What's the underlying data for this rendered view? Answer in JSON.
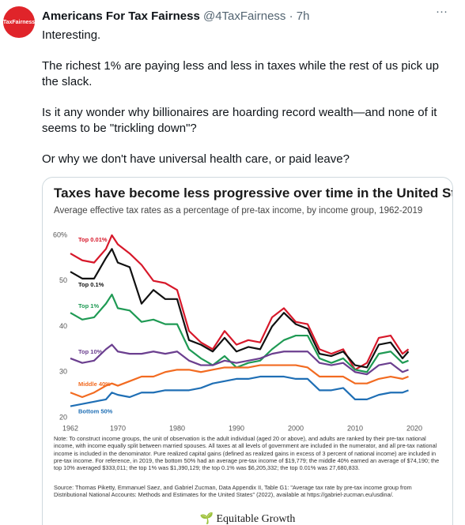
{
  "tweet": {
    "avatar_text": "TaxFairness",
    "name": "Americans For Tax Fairness",
    "handle": "@4TaxFairness",
    "separator": "·",
    "time": "7h",
    "more": "···",
    "paragraphs": [
      "Interesting.",
      "The richest 1% are paying less and less in taxes while the rest of us pick up the slack.",
      "Is it any wonder why billionaires are hoarding record wealth—and none of it seems to be \"trickling down\"?",
      "Or why we don't have universal health care, or paid leave?"
    ],
    "logo": "Equitable Growth"
  },
  "chart_data": {
    "type": "line",
    "title": "Taxes have become less progressive over time in the United States",
    "subtitle": "Average effective tax rates as a percentage of pre-tax income, by income group, 1962-2019",
    "x": [
      1962,
      1964,
      1966,
      1968,
      1969,
      1970,
      1972,
      1974,
      1976,
      1978,
      1980,
      1982,
      1984,
      1986,
      1988,
      1990,
      1992,
      1994,
      1996,
      1998,
      2000,
      2002,
      2004,
      2006,
      2008,
      2010,
      2012,
      2014,
      2016,
      2018,
      2019
    ],
    "series": [
      {
        "name": "Top 0.01%",
        "color": "#d7182a",
        "values": [
          56,
          54.5,
          54,
          57,
          60,
          58,
          56,
          53.5,
          50,
          49.5,
          48,
          39,
          36.5,
          35,
          39,
          36,
          37,
          36.5,
          42,
          44,
          41,
          40.5,
          35,
          34,
          35,
          30.5,
          32,
          37.5,
          38,
          34,
          35
        ]
      },
      {
        "name": "Top 0.1%",
        "color": "#111111",
        "values": [
          52,
          50.5,
          50.5,
          55,
          57,
          54,
          53,
          45,
          48,
          46,
          46,
          37,
          36,
          34.5,
          37.5,
          34.5,
          35.5,
          35,
          40,
          43,
          40.5,
          39.5,
          34,
          33.5,
          34.5,
          31.5,
          31,
          36,
          36.5,
          33,
          34.5
        ]
      },
      {
        "name": "Top 1%",
        "color": "#1f9a54",
        "values": [
          43,
          41.5,
          42,
          45,
          47,
          44,
          43.5,
          41,
          41.5,
          40.5,
          40.5,
          35,
          33,
          31.5,
          33.5,
          31,
          32,
          32.5,
          35,
          37,
          38,
          38,
          33,
          32,
          33,
          30.5,
          30,
          34,
          34.5,
          32,
          32.5
        ]
      },
      {
        "name": "Top 10%",
        "color": "#6b3f8f",
        "values": [
          33,
          32,
          32.5,
          35,
          36,
          34.5,
          34,
          34,
          34.5,
          34,
          34.5,
          32.5,
          31.5,
          31.5,
          32.5,
          32,
          32.5,
          33,
          34,
          34.5,
          34.5,
          34.5,
          32,
          31.5,
          32,
          30,
          29.5,
          31.5,
          32,
          30,
          30.5
        ]
      },
      {
        "name": "Middle 40%",
        "color": "#f26b21",
        "values": [
          25.5,
          24.5,
          25.5,
          27,
          27.5,
          27,
          28,
          29,
          29,
          30,
          30.5,
          30.5,
          30,
          30.5,
          31,
          31,
          31,
          31.5,
          31.5,
          31.5,
          31.5,
          31,
          29,
          29,
          29,
          27.5,
          27.5,
          28.5,
          29,
          28.5,
          29
        ]
      },
      {
        "name": "Bottom 50%",
        "color": "#1f6fb5",
        "values": [
          22.5,
          23,
          23.5,
          24,
          25.5,
          25,
          24.5,
          25.5,
          25.5,
          26,
          26,
          26,
          26.5,
          27.5,
          28,
          28.5,
          28.5,
          29,
          29,
          29,
          28.5,
          28.5,
          26,
          26,
          26.5,
          24,
          24,
          25,
          25.5,
          25.5,
          26
        ]
      }
    ],
    "xlim": [
      1962,
      2020
    ],
    "xticks": [
      1962,
      1970,
      1980,
      1990,
      2000,
      2010,
      2020
    ],
    "ylim": [
      20,
      61
    ],
    "yticks": [
      {
        "value": 60,
        "label": "60%"
      },
      50,
      40,
      30,
      20
    ],
    "grid": false,
    "note": "Note: To construct income groups, the unit of observation is the adult individual (aged 20 or above), and adults are ranked by their pre-tax national income, with income equally split between married spouses. All taxes at all levels of government are included in the numerator, and all pre-tax national income is included in the denominator. Pure realized capital gains (defined as realized gains in excess of 3 percent of national income) are included in pre-tax income. For reference, in 2019, the bottom 50% had an average pre-tax income of $19,779; the middle 40% earned an average of $74,190; the top 10% averaged $333,011; the top 1% was $1,390,129; the top 0.1% was $6,205,332; the top 0.01% was 27,680,833.",
    "source": "Source: Thomas Piketty, Emmanuel Saez, and Gabriel Zucman, Data Appendix II, Table G1: \"Average tax rate by pre-tax income group from Distributional National Accounts: Methods and Estimates for the United States\" (2022), available at https://gabriel-zucman.eu/usdina/."
  }
}
